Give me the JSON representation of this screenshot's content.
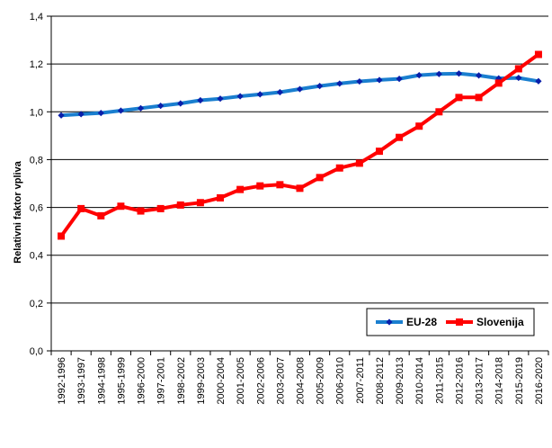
{
  "chart_data": {
    "type": "line",
    "title": "",
    "xlabel": "",
    "ylabel": "Relativni faktor vpliva",
    "ylim": [
      0,
      1.4
    ],
    "ytick_step": 0.2,
    "y_tick_labels": [
      "0,0",
      "0,2",
      "0,4",
      "0,6",
      "0,8",
      "1,0",
      "1,2",
      "1,4"
    ],
    "grid": true,
    "legend_position": "bottom-right",
    "categories": [
      "1992-1996",
      "1993-1997",
      "1994-1998",
      "1995-1999",
      "1996-2000",
      "1997-2001",
      "1998-2002",
      "1999-2003",
      "2000-2004",
      "2001-2005",
      "2002-2006",
      "2003-2007",
      "2004-2008",
      "2005-2009",
      "2006-2010",
      "2007-2011",
      "2008-2012",
      "2009-2013",
      "2010-2014",
      "2011-2015",
      "2012-2016",
      "2013-2017",
      "2014-2018",
      "2015-2019",
      "2016-2020"
    ],
    "series": [
      {
        "name": "EU-28",
        "color": "#1a7fcf",
        "marker_color": "#0a1faa",
        "marker": "diamond",
        "values": [
          0.985,
          0.99,
          0.995,
          1.005,
          1.015,
          1.025,
          1.035,
          1.048,
          1.055,
          1.065,
          1.073,
          1.082,
          1.095,
          1.108,
          1.118,
          1.127,
          1.133,
          1.138,
          1.153,
          1.158,
          1.16,
          1.152,
          1.14,
          1.142,
          1.128
        ]
      },
      {
        "name": "Slovenija",
        "color": "#ff0000",
        "marker_color": "#ff0000",
        "marker": "square",
        "values": [
          0.48,
          0.595,
          0.565,
          0.605,
          0.585,
          0.595,
          0.61,
          0.62,
          0.64,
          0.675,
          0.69,
          0.695,
          0.68,
          0.725,
          0.765,
          0.785,
          0.835,
          0.893,
          0.94,
          1.0,
          1.06,
          1.06,
          1.12,
          1.18,
          1.24
        ]
      }
    ]
  }
}
